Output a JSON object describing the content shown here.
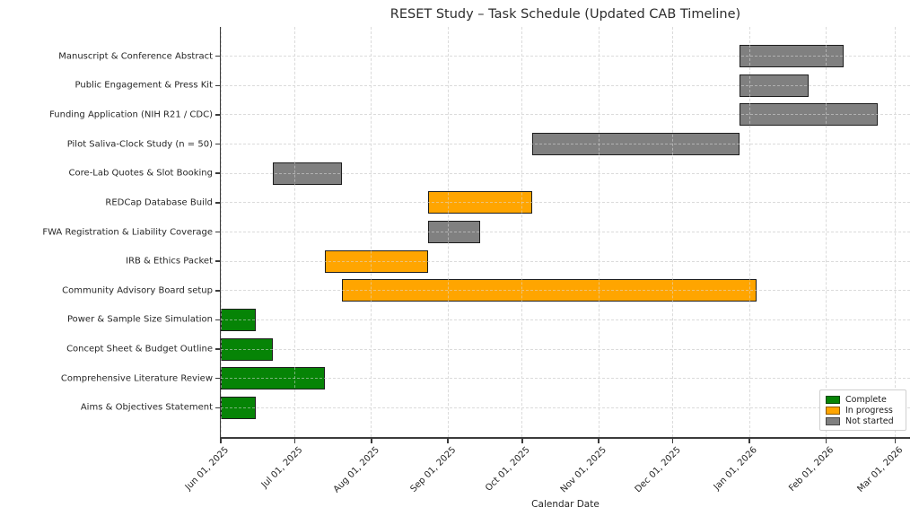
{
  "chart_data": {
    "type": "gantt",
    "title": "RESET Study – Task Schedule (Updated CAB Timeline)",
    "xlabel": "Calendar Date",
    "ylabel": "",
    "grid": "dashed",
    "legend_position": "lower right",
    "x_axis": {
      "start": "2025-06-01",
      "end": "2026-03-07",
      "ticks": [
        {
          "date": "2025-06-01",
          "label": "Jun 01, 2025"
        },
        {
          "date": "2025-07-01",
          "label": "Jul 01, 2025"
        },
        {
          "date": "2025-08-01",
          "label": "Aug 01, 2025"
        },
        {
          "date": "2025-09-01",
          "label": "Sep 01, 2025"
        },
        {
          "date": "2025-10-01",
          "label": "Oct 01, 2025"
        },
        {
          "date": "2025-11-01",
          "label": "Nov 01, 2025"
        },
        {
          "date": "2025-12-01",
          "label": "Dec 01, 2025"
        },
        {
          "date": "2026-01-01",
          "label": "Jan 01, 2026"
        },
        {
          "date": "2026-02-01",
          "label": "Feb 01, 2026"
        },
        {
          "date": "2026-03-01",
          "label": "Mar 01, 2026"
        }
      ]
    },
    "statuses": [
      {
        "key": "complete",
        "label": "Complete",
        "color": "#068406"
      },
      {
        "key": "in_progress",
        "label": "In progress",
        "color": "#ffa500"
      },
      {
        "key": "not_started",
        "label": "Not started",
        "color": "#808080"
      }
    ],
    "bar_edge_color": "#1d1d1d",
    "tasks": [
      {
        "name": "Manuscript & Conference Abstract",
        "start": "2025-12-28",
        "end": "2026-02-08",
        "status": "not_started"
      },
      {
        "name": "Public Engagement & Press Kit",
        "start": "2025-12-28",
        "end": "2026-01-25",
        "status": "not_started"
      },
      {
        "name": "Funding Application (NIH R21 / CDC)",
        "start": "2025-12-28",
        "end": "2026-02-22",
        "status": "not_started"
      },
      {
        "name": "Pilot Saliva-Clock Study (n = 50)",
        "start": "2025-10-05",
        "end": "2025-12-28",
        "status": "not_started"
      },
      {
        "name": "Core-Lab Quotes & Slot Booking",
        "start": "2025-06-22",
        "end": "2025-07-20",
        "status": "not_started"
      },
      {
        "name": "REDCap Database Build",
        "start": "2025-08-24",
        "end": "2025-10-05",
        "status": "in_progress"
      },
      {
        "name": "FWA Registration & Liability Coverage",
        "start": "2025-08-24",
        "end": "2025-09-14",
        "status": "not_started"
      },
      {
        "name": "IRB & Ethics Packet",
        "start": "2025-07-13",
        "end": "2025-08-24",
        "status": "in_progress"
      },
      {
        "name": "Community Advisory Board setup",
        "start": "2025-07-20",
        "end": "2026-01-04",
        "status": "in_progress"
      },
      {
        "name": "Power & Sample Size Simulation",
        "start": "2025-06-01",
        "end": "2025-06-15",
        "status": "complete"
      },
      {
        "name": "Concept Sheet & Budget Outline",
        "start": "2025-06-01",
        "end": "2025-06-22",
        "status": "complete"
      },
      {
        "name": "Comprehensive Literature Review",
        "start": "2025-06-01",
        "end": "2025-07-13",
        "status": "complete"
      },
      {
        "name": "Aims & Objectives Statement",
        "start": "2025-06-01",
        "end": "2025-06-15",
        "status": "complete"
      }
    ]
  }
}
